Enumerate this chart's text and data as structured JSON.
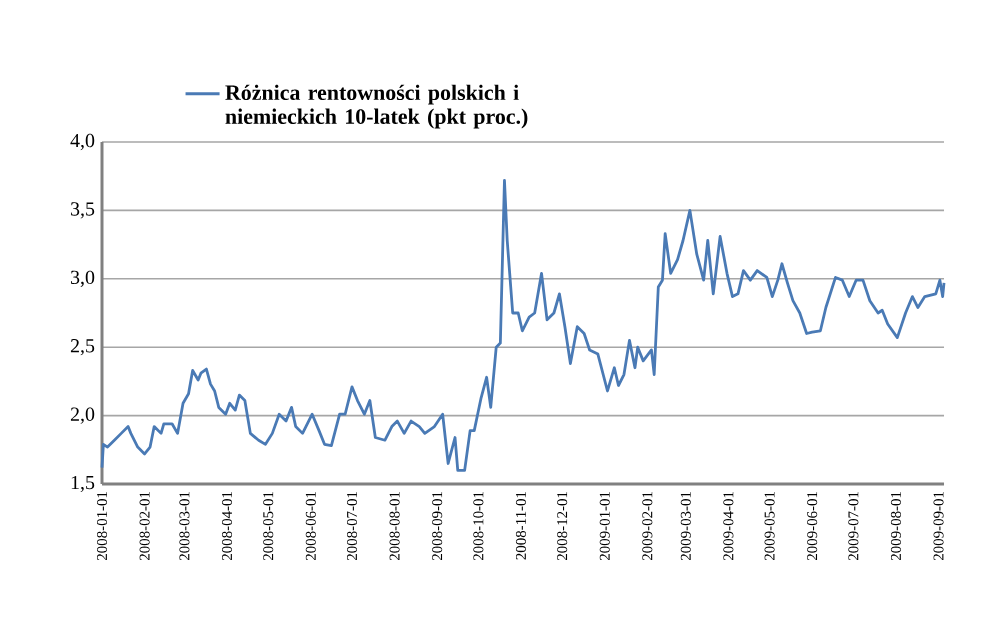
{
  "chart_data": {
    "type": "line",
    "xlim": [
      "2008-01-01",
      "2009-09-05"
    ],
    "xticks": [
      "2008-01-01",
      "2008-02-01",
      "2008-03-01",
      "2008-04-01",
      "2008-05-01",
      "2008-06-01",
      "2008-07-01",
      "2008-08-01",
      "2008-09-01",
      "2008-10-01",
      "2008-11-01",
      "2008-12-01",
      "2009-01-01",
      "2009-02-01",
      "2009-03-01",
      "2009-04-01",
      "2009-05-01",
      "2009-06-01",
      "2009-07-01",
      "2009-08-01",
      "2009-09-01"
    ],
    "ylim": [
      1.5,
      4.0
    ],
    "yticks": [
      {
        "value": 1.5,
        "label": "1,5"
      },
      {
        "value": 2.0,
        "label": "2,0"
      },
      {
        "value": 2.5,
        "label": "2,5"
      },
      {
        "value": 3.0,
        "label": "3,0"
      },
      {
        "value": 3.5,
        "label": "3,5"
      },
      {
        "value": 4.0,
        "label": "4,0"
      }
    ],
    "grid": "y",
    "legend": "top",
    "marker": "none",
    "line_style": "solid",
    "x": [
      "2008-01-01",
      "2008-01-02",
      "2008-01-05",
      "2008-01-10",
      "2008-01-15",
      "2008-01-20",
      "2008-01-22",
      "2008-01-27",
      "2008-02-01",
      "2008-02-05",
      "2008-02-08",
      "2008-02-13",
      "2008-02-15",
      "2008-02-21",
      "2008-02-25",
      "2008-02-29",
      "2008-03-04",
      "2008-03-07",
      "2008-03-11",
      "2008-03-13",
      "2008-03-17",
      "2008-03-20",
      "2008-03-23",
      "2008-03-26",
      "2008-03-31",
      "2008-04-03",
      "2008-04-07",
      "2008-04-10",
      "2008-04-14",
      "2008-04-18",
      "2008-04-24",
      "2008-04-29",
      "2008-05-04",
      "2008-05-09",
      "2008-05-14",
      "2008-05-18",
      "2008-05-21",
      "2008-05-26",
      "2008-06-02",
      "2008-06-07",
      "2008-06-11",
      "2008-06-16",
      "2008-06-22",
      "2008-06-26",
      "2008-07-01",
      "2008-07-05",
      "2008-07-10",
      "2008-07-14",
      "2008-07-18",
      "2008-07-25",
      "2008-07-30",
      "2008-08-03",
      "2008-08-08",
      "2008-08-13",
      "2008-08-19",
      "2008-08-23",
      "2008-08-30",
      "2008-09-05",
      "2008-09-09",
      "2008-09-14",
      "2008-09-16",
      "2008-09-21",
      "2008-09-25",
      "2008-09-28",
      "2008-10-03",
      "2008-10-07",
      "2008-10-10",
      "2008-10-14",
      "2008-10-17",
      "2008-10-20",
      "2008-10-22",
      "2008-10-26",
      "2008-10-30",
      "2008-11-02",
      "2008-11-07",
      "2008-11-11",
      "2008-11-16",
      "2008-11-20",
      "2008-11-25",
      "2008-11-29",
      "2008-12-03",
      "2008-12-07",
      "2008-12-12",
      "2008-12-17",
      "2008-12-21",
      "2008-12-27",
      "2009-01-03",
      "2009-01-08",
      "2009-01-11",
      "2009-01-15",
      "2009-01-19",
      "2009-01-23",
      "2009-01-25",
      "2009-01-29",
      "2009-02-04",
      "2009-02-06",
      "2009-02-09",
      "2009-02-12",
      "2009-02-14",
      "2009-02-18",
      "2009-02-23",
      "2009-02-27",
      "2009-03-04",
      "2009-03-09",
      "2009-03-14",
      "2009-03-17",
      "2009-03-21",
      "2009-03-26",
      "2009-03-31",
      "2009-04-04",
      "2009-04-08",
      "2009-04-12",
      "2009-04-17",
      "2009-04-22",
      "2009-04-29",
      "2009-05-03",
      "2009-05-07",
      "2009-05-10",
      "2009-05-14",
      "2009-05-18",
      "2009-05-23",
      "2009-05-28",
      "2009-06-01",
      "2009-06-07",
      "2009-06-11",
      "2009-06-18",
      "2009-06-23",
      "2009-06-28",
      "2009-07-03",
      "2009-07-08",
      "2009-07-13",
      "2009-07-19",
      "2009-07-22",
      "2009-07-26",
      "2009-08-02",
      "2009-08-08",
      "2009-08-13",
      "2009-08-17",
      "2009-08-22",
      "2009-08-30",
      "2009-09-02",
      "2009-09-04",
      "2009-09-05"
    ],
    "series": [
      {
        "name": "Różnica rentowności polskich i niemieckich 10-latek (pkt proc.)",
        "color": "#4a7ab5",
        "values": [
          1.62,
          1.79,
          1.77,
          1.82,
          1.87,
          1.92,
          1.87,
          1.77,
          1.72,
          1.77,
          1.92,
          1.87,
          1.94,
          1.94,
          1.87,
          2.09,
          2.16,
          2.33,
          2.26,
          2.31,
          2.34,
          2.23,
          2.18,
          2.06,
          2.01,
          2.09,
          2.04,
          2.15,
          2.11,
          1.87,
          1.82,
          1.79,
          1.87,
          2.01,
          1.96,
          2.06,
          1.92,
          1.87,
          2.01,
          1.89,
          1.79,
          1.78,
          2.01,
          2.01,
          2.21,
          2.11,
          2.01,
          2.11,
          1.84,
          1.82,
          1.92,
          1.96,
          1.87,
          1.96,
          1.92,
          1.87,
          1.92,
          2.01,
          1.65,
          1.84,
          1.6,
          1.6,
          1.89,
          1.89,
          2.13,
          2.28,
          2.06,
          2.5,
          2.53,
          3.72,
          3.28,
          2.75,
          2.75,
          2.62,
          2.72,
          2.75,
          3.04,
          2.7,
          2.75,
          2.89,
          2.65,
          2.38,
          2.65,
          2.6,
          2.48,
          2.45,
          2.18,
          2.35,
          2.22,
          2.3,
          2.55,
          2.35,
          2.5,
          2.4,
          2.48,
          2.3,
          2.94,
          2.99,
          3.33,
          3.04,
          3.14,
          3.28,
          3.5,
          3.18,
          2.99,
          3.28,
          2.89,
          3.31,
          3.04,
          2.87,
          2.89,
          3.06,
          2.99,
          3.06,
          3.01,
          2.87,
          2.99,
          3.11,
          2.97,
          2.84,
          2.75,
          2.6,
          2.61,
          2.62,
          2.79,
          3.01,
          2.99,
          2.87,
          2.99,
          2.99,
          2.84,
          2.75,
          2.77,
          2.67,
          2.57,
          2.75,
          2.87,
          2.79,
          2.87,
          2.89,
          2.99,
          2.87,
          2.97
        ]
      }
    ]
  }
}
